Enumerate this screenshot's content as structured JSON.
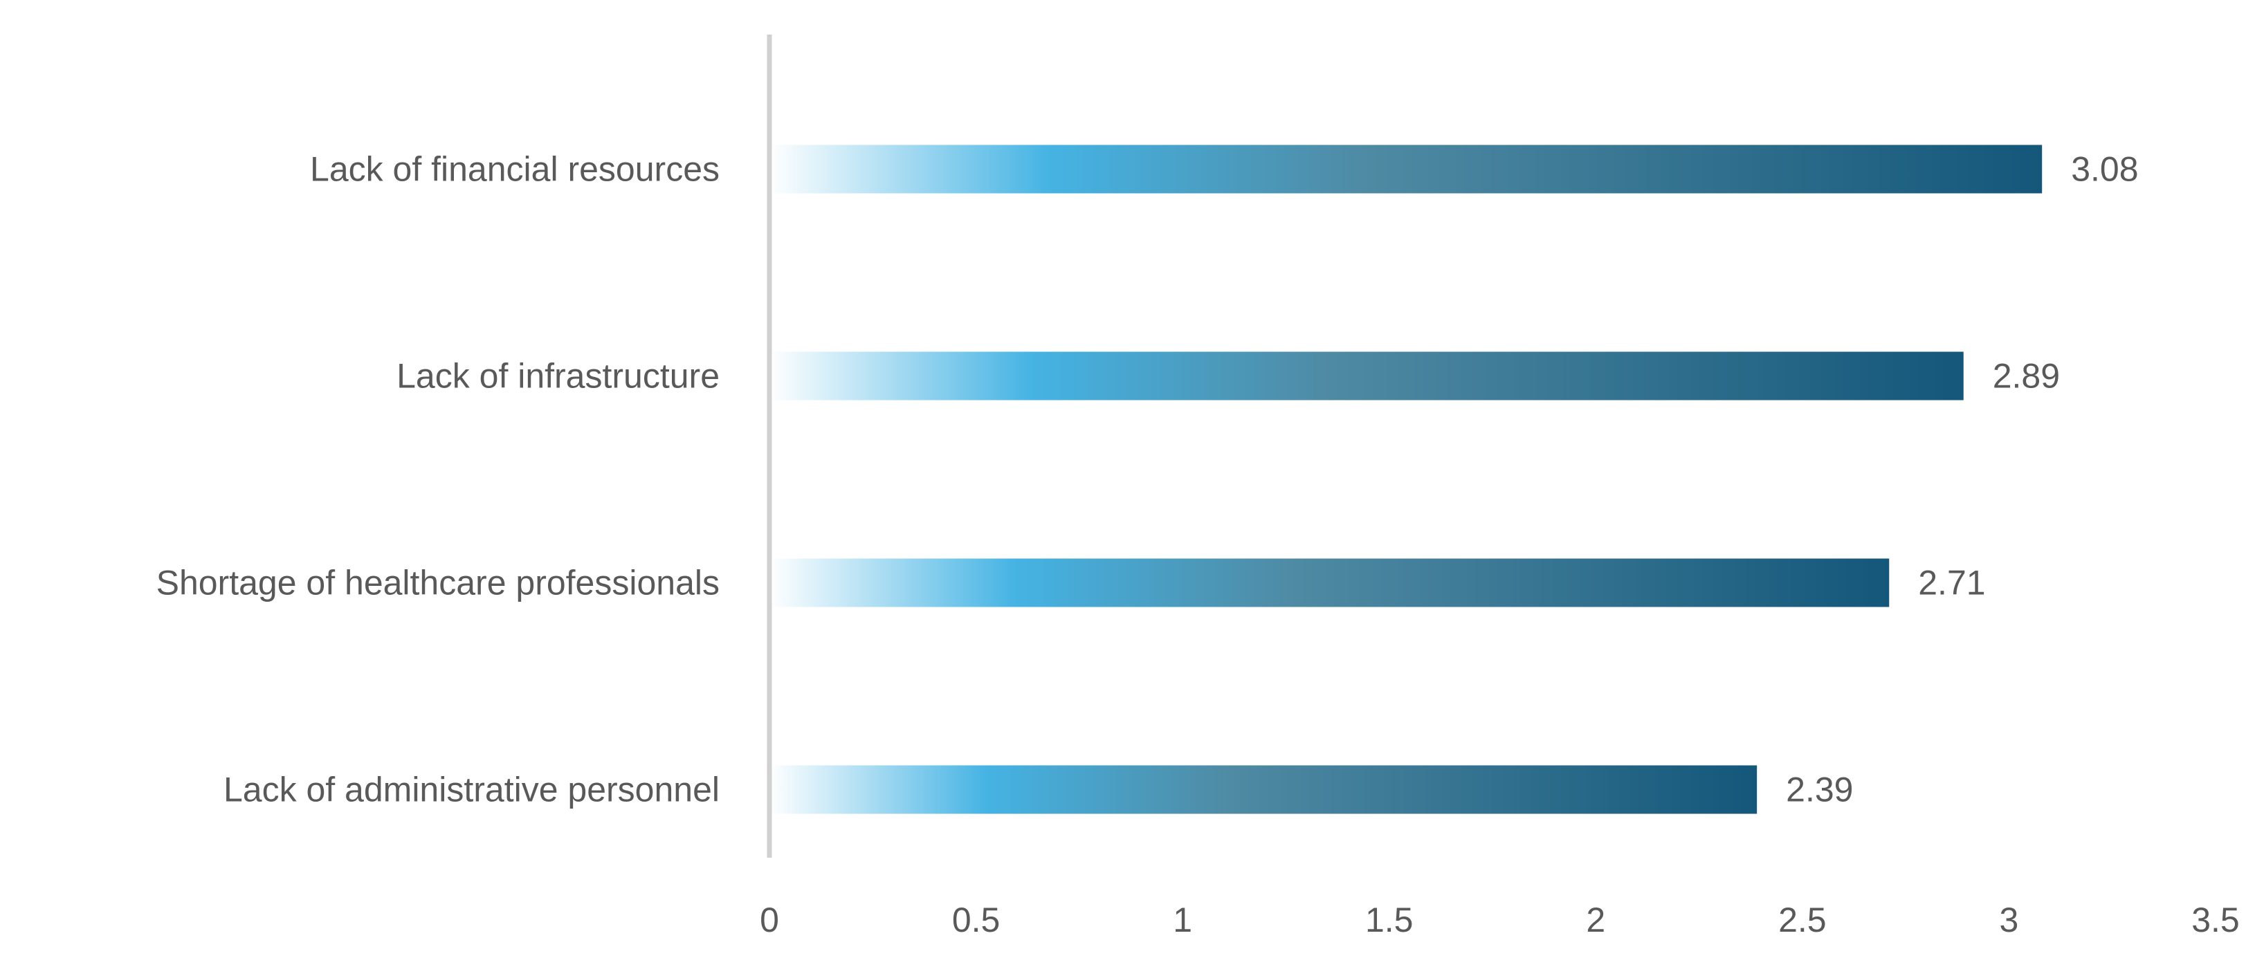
{
  "chart_data": {
    "type": "bar",
    "orientation": "horizontal",
    "title": "",
    "xlabel": "",
    "ylabel": "",
    "categories": [
      "Lack of financial resources",
      "Lack of infrastructure",
      "Shortage of healthcare professionals",
      "Lack of administrative personnel"
    ],
    "values": [
      3.08,
      2.89,
      2.71,
      2.39
    ],
    "data_labels": [
      "3.08",
      "2.89",
      "2.71",
      "2.39"
    ],
    "xlim": [
      0,
      3.5
    ],
    "x_ticks": [
      0,
      0.5,
      1,
      1.5,
      2,
      2.5,
      3,
      3.5
    ],
    "x_tick_labels": [
      "0",
      "0.5",
      "1",
      "1.5",
      "2",
      "2.5",
      "3",
      "3.5"
    ],
    "grid": false,
    "legend": "none",
    "colors": {
      "gradient_start": "#ffffff",
      "gradient_light": "#45b3e3",
      "gradient_mid": "#4f8aa3",
      "gradient_end": "#14577a",
      "axis_line": "#d0d0d0",
      "text": "#595959"
    }
  }
}
